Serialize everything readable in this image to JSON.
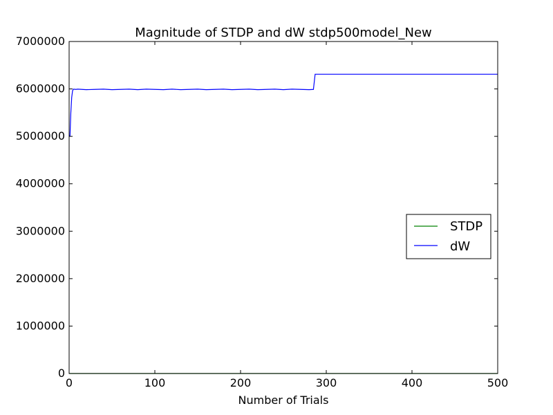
{
  "chart_data": {
    "type": "line",
    "title": "Magnitude of STDP and dW stdp500model_New",
    "xlabel": "Number of Trials",
    "ylabel": "",
    "xlim": [
      0,
      500
    ],
    "ylim": [
      0,
      7000000
    ],
    "xticks": [
      0,
      100,
      200,
      300,
      400,
      500
    ],
    "xtick_labels": [
      "0",
      "100",
      "200",
      "300",
      "400",
      "500"
    ],
    "yticks": [
      0,
      1000000,
      2000000,
      3000000,
      4000000,
      5000000,
      6000000,
      7000000
    ],
    "ytick_labels": [
      "0",
      "1000000",
      "2000000",
      "3000000",
      "4000000",
      "5000000",
      "6000000",
      "7000000"
    ],
    "grid": false,
    "legend_position": "center-right",
    "series": [
      {
        "name": "STDP",
        "color": "#008000",
        "x": [
          0,
          500
        ],
        "y": [
          0,
          0
        ]
      },
      {
        "name": "dW",
        "color": "#0000ff",
        "x": [
          0,
          1,
          2,
          3,
          4,
          5,
          8,
          10,
          20,
          30,
          40,
          50,
          60,
          70,
          80,
          90,
          100,
          110,
          120,
          130,
          140,
          150,
          160,
          170,
          180,
          190,
          200,
          210,
          220,
          230,
          240,
          250,
          260,
          270,
          280,
          285,
          287,
          300,
          400,
          500
        ],
        "y": [
          5020000,
          5010000,
          5500000,
          5820000,
          5960000,
          5995000,
          5990000,
          5995000,
          5985000,
          5990000,
          5995000,
          5985000,
          5990000,
          5995000,
          5985000,
          5995000,
          5990000,
          5985000,
          5995000,
          5985000,
          5990000,
          5995000,
          5985000,
          5990000,
          5995000,
          5985000,
          5990000,
          5995000,
          5985000,
          5990000,
          5995000,
          5985000,
          5995000,
          5990000,
          5985000,
          5990000,
          6310000,
          6310000,
          6310000,
          6310000
        ]
      }
    ]
  }
}
